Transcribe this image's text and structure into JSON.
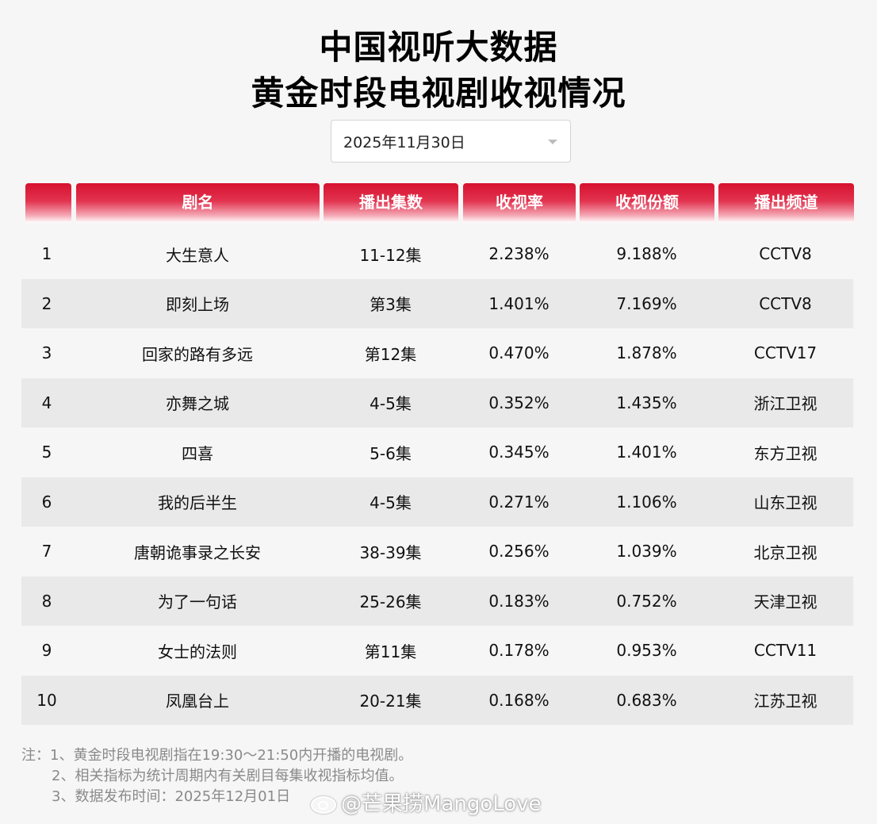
{
  "title_line1": "中国视听大数据",
  "title_line2": "黄金时段电视剧收视情况",
  "date_select": {
    "value": "2025年11月30日"
  },
  "table": {
    "headers": [
      "",
      "剧名",
      "播出集数",
      "收视率",
      "收视份额",
      "播出频道"
    ],
    "rows": [
      [
        "1",
        "大生意人",
        "11-12集",
        "2.238%",
        "9.188%",
        "CCTV8"
      ],
      [
        "2",
        "即刻上场",
        "第3集",
        "1.401%",
        "7.169%",
        "CCTV8"
      ],
      [
        "3",
        "回家的路有多远",
        "第12集",
        "0.470%",
        "1.878%",
        "CCTV17"
      ],
      [
        "4",
        "亦舞之城",
        "4-5集",
        "0.352%",
        "1.435%",
        "浙江卫视"
      ],
      [
        "5",
        "四喜",
        "5-6集",
        "0.345%",
        "1.401%",
        "东方卫视"
      ],
      [
        "6",
        "我的后半生",
        "4-5集",
        "0.271%",
        "1.106%",
        "山东卫视"
      ],
      [
        "7",
        "唐朝诡事录之长安",
        "38-39集",
        "0.256%",
        "1.039%",
        "北京卫视"
      ],
      [
        "8",
        "为了一句话",
        "25-26集",
        "0.183%",
        "0.752%",
        "天津卫视"
      ],
      [
        "9",
        "女士的法则",
        "第11集",
        "0.178%",
        "0.953%",
        "CCTV11"
      ],
      [
        "10",
        "凤凰台上",
        "20-21集",
        "0.168%",
        "0.683%",
        "江苏卫视"
      ]
    ]
  },
  "notes": [
    "注：1、黄金时段电视剧指在19:30～21:50内开播的电视剧。",
    "2、相关指标为统计周期内有关剧目每集收视指标均值。",
    "3、数据发布时间：2025年12月01日"
  ],
  "watermark": "@芒果捞MangoLove",
  "colors": {
    "header_red": "#d6112f",
    "row_alt": "#e9e9e9",
    "background": "#f6f6f6"
  }
}
